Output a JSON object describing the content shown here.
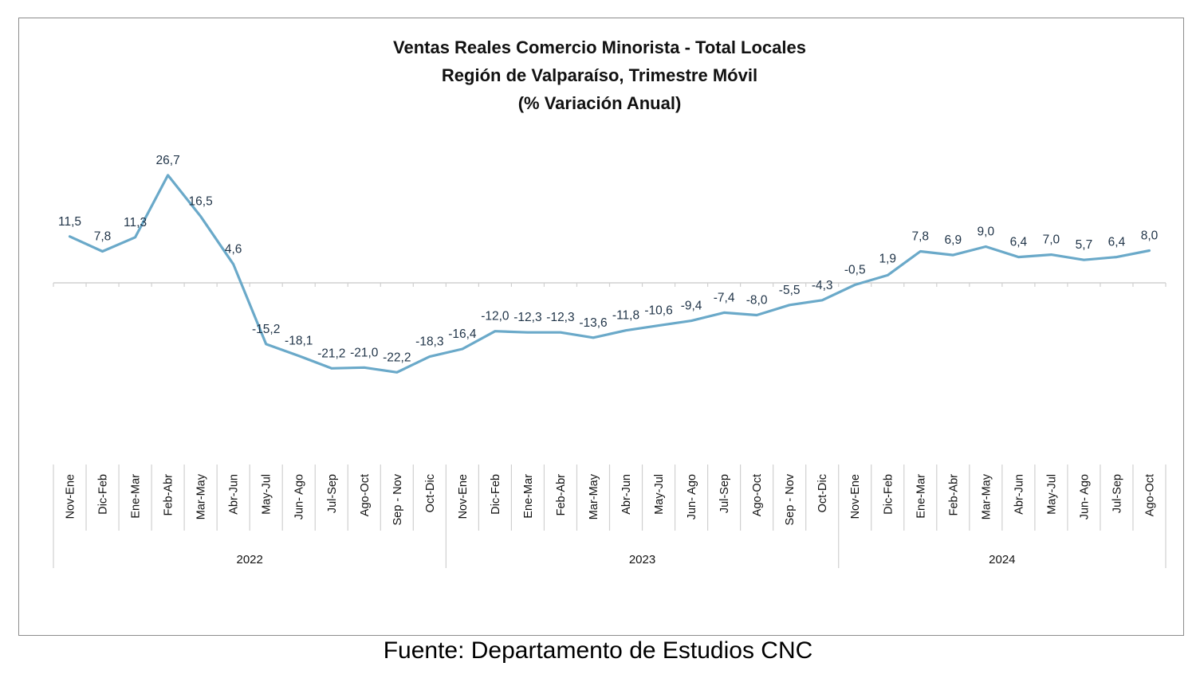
{
  "chart_data": {
    "type": "line",
    "title": [
      "Ventas Reales Comercio Minorista - Total Locales",
      "Región de Valparaíso, Trimestre Móvil",
      "(% Variación Anual)"
    ],
    "categories": [
      "Nov-Ene",
      "Dic-Feb",
      "Ene-Mar",
      "Feb-Abr",
      "Mar-May",
      "Abr-Jun",
      "May-Jul",
      "Jun- Ago",
      "Jul-Sep",
      "Ago-Oct",
      "Sep - Nov",
      "Oct-Dic",
      "Nov-Ene",
      "Dic-Feb",
      "Ene-Mar",
      "Feb-Abr",
      "Mar-May",
      "Abr-Jun",
      "May-Jul",
      "Jun- Ago",
      "Jul-Sep",
      "Ago-Oct",
      "Sep - Nov",
      "Oct-Dic",
      "Nov-Ene",
      "Dic-Feb",
      "Ene-Mar",
      "Feb-Abr",
      "Mar-May",
      "Abr-Jun",
      "May-Jul",
      "Jun- Ago",
      "Jul-Sep",
      "Ago-Oct"
    ],
    "year_groups": [
      {
        "label": "2022",
        "count": 12
      },
      {
        "label": "2023",
        "count": 12
      },
      {
        "label": "2024",
        "count": 10
      }
    ],
    "series": [
      {
        "values": [
          11.5,
          7.8,
          11.3,
          26.7,
          16.5,
          4.6,
          -15.2,
          -18.1,
          -21.2,
          -21.0,
          -22.2,
          -18.3,
          -16.4,
          -12.0,
          -12.3,
          -12.3,
          -13.6,
          -11.8,
          -10.6,
          -9.4,
          -7.4,
          -8.0,
          -5.5,
          -4.3,
          -0.5,
          1.9,
          7.8,
          6.9,
          9.0,
          6.4,
          7.0,
          5.7,
          6.4,
          8.0
        ],
        "labels": [
          "11,5",
          "7,8",
          "11,3",
          "26,7",
          "16,5",
          "4,6",
          "-15,2",
          "-18,1",
          "-21,2",
          "-21,0",
          "-22,2",
          "-18,3",
          "-16,4",
          "-12,0",
          "-12,3",
          "-12,3",
          "-13,6",
          "-11,8",
          "-10,6",
          "-9,4",
          "-7,4",
          "-8,0",
          "-5,5",
          "-4,3",
          "-0,5",
          "1,9",
          "7,8",
          "6,9",
          "9,0",
          "6,4",
          "7,0",
          "5,7",
          "6,4",
          "8,0"
        ]
      }
    ],
    "line_color": "#6aa9c9",
    "label_color": "#1f3347",
    "axis_color": "#d0d0d0",
    "grid": false,
    "legend": "none"
  },
  "source_text": "Fuente: Departamento de Estudios CNC"
}
